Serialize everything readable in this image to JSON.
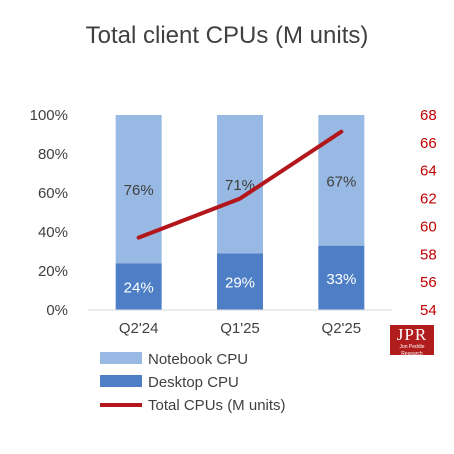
{
  "chart_data": {
    "type": "bar",
    "title": "Total client CPUs (M units)",
    "categories": [
      "Q2'24",
      "Q1'25",
      "Q2'25"
    ],
    "series": [
      {
        "name": "Desktop CPU",
        "kind": "stacked-bar-percent",
        "values": [
          24,
          29,
          33
        ],
        "labels": [
          "24%",
          "29%",
          "33%"
        ],
        "color": "#4e7fc6"
      },
      {
        "name": "Notebook CPU",
        "kind": "stacked-bar-percent",
        "values": [
          76,
          71,
          67
        ],
        "labels": [
          "76%",
          "71%",
          "67%"
        ],
        "color": "#97b9e3"
      },
      {
        "name": "Total CPUs (M units)",
        "kind": "line",
        "axis": "right",
        "values": [
          59.2,
          62,
          66.8
        ],
        "color": "#b3161b"
      }
    ],
    "y_left": {
      "ylim": [
        0,
        100
      ],
      "ticks": [
        "0%",
        "20%",
        "40%",
        "60%",
        "80%",
        "100%"
      ],
      "color": "#404040"
    },
    "y_right": {
      "ylim": [
        54,
        68
      ],
      "ticks": [
        "54",
        "56",
        "58",
        "60",
        "62",
        "64",
        "66",
        "68"
      ],
      "color": "#c00000"
    },
    "grid": false,
    "legend_position": "bottom"
  },
  "logo": {
    "main": "JPR",
    "sub": "Jon Peddie Research"
  }
}
